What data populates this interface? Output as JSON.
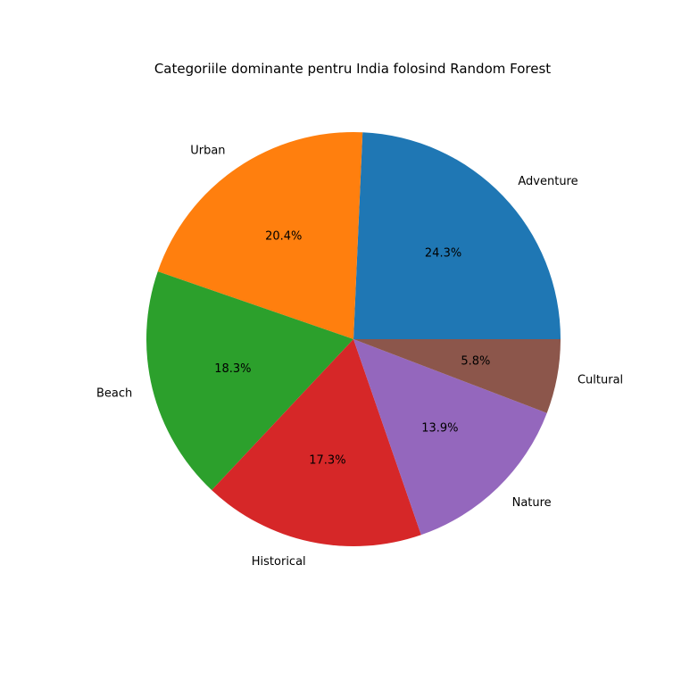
{
  "chart_data": {
    "type": "pie",
    "title": "Categoriile dominante pentru India folosind Random Forest",
    "start_angle_deg": 0,
    "direction": "counterclockwise",
    "label_format": "percent_one_decimal",
    "slices": [
      {
        "label": "Adventure",
        "percent": 24.3,
        "color": "#1f77b4"
      },
      {
        "label": "Urban",
        "percent": 20.4,
        "color": "#ff7f0e"
      },
      {
        "label": "Beach",
        "percent": 18.3,
        "color": "#2ca02c"
      },
      {
        "label": "Historical",
        "percent": 17.3,
        "color": "#d62728"
      },
      {
        "label": "Nature",
        "percent": 13.9,
        "color": "#9467bd"
      },
      {
        "label": "Cultural",
        "percent": 5.8,
        "color": "#8c564b"
      }
    ]
  }
}
